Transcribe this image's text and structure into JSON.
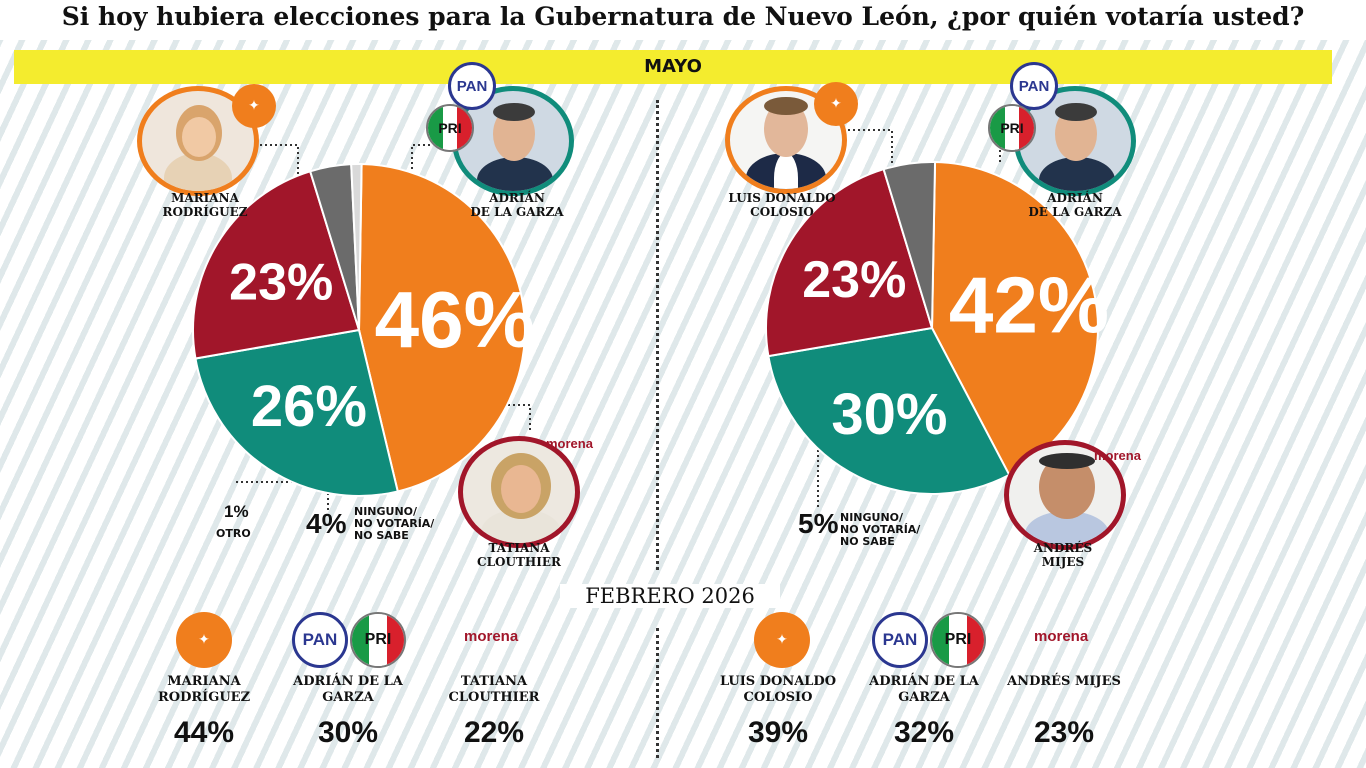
{
  "title": "Si hoy hubiera elecciones para la Gubernatura de Nuevo León, ¿por quién votaría usted?",
  "month_banner": "MAYO",
  "february_title": "FEBRERO 2026",
  "colors": {
    "mc": "#f07e1d",
    "pan_pri": "#108c7b",
    "morena": "#a1162a",
    "ninguno": "#6b6b6b",
    "otro": "#d9d9d9",
    "highlight": "#f4ec2e"
  },
  "logos": {
    "pan": "PAN",
    "pri": "PRI",
    "morena": "morena",
    "mc_icon": "mc-eagle-icon"
  },
  "chart_data": [
    {
      "type": "pie",
      "title": "MAYO",
      "slices": [
        {
          "label": "MARIANA RODRÍGUEZ",
          "value": 46,
          "display": "46%",
          "party": "mc"
        },
        {
          "label": "ADRIÁN DE LA GARZA",
          "value": 26,
          "display": "26%",
          "party": "pan_pri"
        },
        {
          "label": "TATIANA CLOUTHIER",
          "value": 23,
          "display": "23%",
          "party": "morena"
        },
        {
          "label": "NINGUNO/ NO VOTARÍA/ NO SABE",
          "value": 4,
          "display": "4%",
          "party": "ninguno"
        },
        {
          "label": "OTRO",
          "value": 1,
          "display": "1%",
          "party": "otro"
        }
      ]
    },
    {
      "type": "pie",
      "title": "MAYO",
      "slices": [
        {
          "label": "LUIS DONALDO COLOSIO",
          "value": 42,
          "display": "42%",
          "party": "mc"
        },
        {
          "label": "ADRIÁN DE LA GARZA",
          "value": 30,
          "display": "30%",
          "party": "pan_pri"
        },
        {
          "label": "ANDRÉS MIJES",
          "value": 23,
          "display": "23%",
          "party": "morena"
        },
        {
          "label": "NINGUNO/ NO VOTARÍA/ NO SABE",
          "value": 5,
          "display": "5%",
          "party": "ninguno"
        }
      ]
    },
    {
      "type": "table",
      "title": "FEBRERO 2026",
      "rows": [
        {
          "label": "MARIANA RODRÍGUEZ",
          "value": 44,
          "display": "44%"
        },
        {
          "label": "ADRIÁN DE LA GARZA",
          "value": 30,
          "display": "30%"
        },
        {
          "label": "TATIANA CLOUTHIER",
          "value": 22,
          "display": "22%"
        }
      ]
    },
    {
      "type": "table",
      "title": "FEBRERO 2026",
      "rows": [
        {
          "label": "LUIS DONALDO COLOSIO",
          "value": 39,
          "display": "39%"
        },
        {
          "label": "ADRIÁN DE LA GARZA",
          "value": 32,
          "display": "32%"
        },
        {
          "label": "ANDRÉS MIJES",
          "value": 23,
          "display": "23%"
        }
      ]
    }
  ],
  "left": {
    "names": {
      "mc": "MARIANA\nRODRÍGUEZ",
      "pan_pri": "ADRIÁN\nDE LA GARZA",
      "morena": "TATIANA\nCLOUTHIER"
    },
    "ninguno_label": "NINGUNO/\nNO VOTARÍA/\nNO SABE",
    "otro_label": "OTRO"
  },
  "right": {
    "names": {
      "mc": "LUIS DONALDO\nCOLOSIO",
      "pan_pri": "ADRIÁN\nDE LA GARZA",
      "morena": "ANDRÉS\nMIJES"
    },
    "ninguno_label": "NINGUNO/\nNO VOTARÍA/\nNO SABE"
  }
}
